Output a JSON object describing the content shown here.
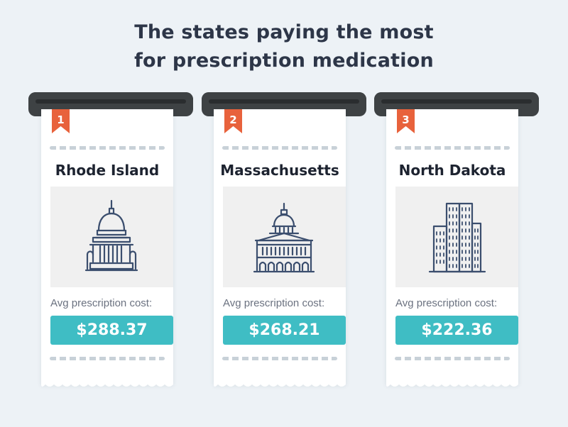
{
  "title_line1": "The states paying the most",
  "title_line2": "for prescription medication",
  "colors": {
    "background": "#edf2f6",
    "ribbon": "#e8623c",
    "price_badge": "#3fbdc4",
    "icon_stroke": "#3b4e6e"
  },
  "receipts": [
    {
      "rank": "1",
      "state": "Rhode Island",
      "icon": "capitol-dome-icon",
      "label": "Avg prescription cost:",
      "price": "$288.37"
    },
    {
      "rank": "2",
      "state": "Massachusetts",
      "icon": "state-house-icon",
      "label": "Avg prescription cost:",
      "price": "$268.21"
    },
    {
      "rank": "3",
      "state": "North Dakota",
      "icon": "skyscraper-icon",
      "label": "Avg prescription cost:",
      "price": "$222.36"
    }
  ]
}
